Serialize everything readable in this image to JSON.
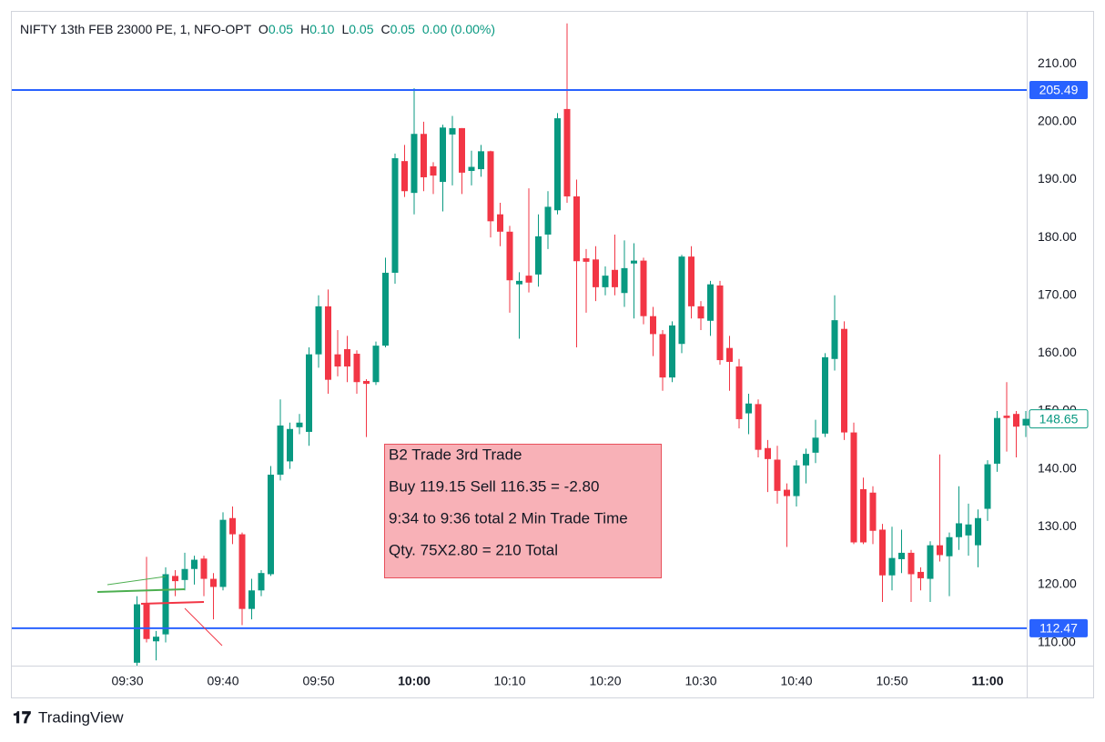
{
  "chart_data": {
    "type": "candlestick",
    "title": "NIFTY 13th FEB 23000 PE, 1, NFO-OPT",
    "ohlc_legend": [
      {
        "key": "O",
        "value": "0.05"
      },
      {
        "key": "H",
        "value": "0.10"
      },
      {
        "key": "L",
        "value": "0.05"
      },
      {
        "key": "C",
        "value": "0.05"
      }
    ],
    "change": "0.00 (0.00%)",
    "x": [
      "09:31",
      "09:32",
      "09:33",
      "09:34",
      "09:35",
      "09:36",
      "09:37",
      "09:38",
      "09:39",
      "09:40",
      "09:41",
      "09:42",
      "09:43",
      "09:44",
      "09:45",
      "09:46",
      "09:47",
      "09:48",
      "09:49",
      "09:50",
      "09:51",
      "09:52",
      "09:53",
      "09:54",
      "09:55",
      "09:56",
      "09:57",
      "09:58",
      "09:59",
      "10:00",
      "10:01",
      "10:02",
      "10:03",
      "10:04",
      "10:05",
      "10:06",
      "10:07",
      "10:08",
      "10:09",
      "10:10",
      "10:11",
      "10:12",
      "10:13",
      "10:14",
      "10:15",
      "10:16",
      "10:17",
      "10:18",
      "10:19",
      "10:20",
      "10:21",
      "10:22",
      "10:23",
      "10:24",
      "10:25",
      "10:26",
      "10:27",
      "10:28",
      "10:29",
      "10:30",
      "10:31",
      "10:32",
      "10:33",
      "10:34",
      "10:35",
      "10:36",
      "10:37",
      "10:38",
      "10:39",
      "10:40",
      "10:41",
      "10:42",
      "10:43",
      "10:44",
      "10:45",
      "10:46",
      "10:47",
      "10:48",
      "10:49",
      "10:50",
      "10:51",
      "10:52",
      "10:53",
      "10:54",
      "10:55",
      "10:56",
      "10:57",
      "10:58",
      "10:59",
      "11:00",
      "11:01",
      "11:02",
      "11:03",
      "11:04"
    ],
    "open": [
      106.5,
      116.6,
      110.2,
      111.4,
      121.5,
      120.8,
      122.7,
      124.5,
      121,
      119.6,
      131.5,
      128.7,
      115.8,
      119,
      121.8,
      139,
      141.3,
      147.2,
      146.4,
      159.8,
      168.1,
      159.8,
      160.7,
      159.9,
      155.2,
      155,
      161.3,
      173.9,
      193.2,
      187.7,
      197.9,
      192.3,
      189.6,
      197.8,
      198.9,
      191.5,
      191.8,
      194.9,
      184,
      181,
      171.9,
      173.4,
      173.6,
      180.5,
      184.7,
      202.2,
      187.1,
      176.4,
      176.2,
      171.4,
      174.4,
      170.4,
      175.5,
      176,
      166.4,
      163.3,
      155.8,
      161.6,
      176.7,
      168.1,
      165.6,
      171.7,
      160.9,
      157.7,
      149.6,
      151.2,
      143.6,
      141.6,
      136.4,
      135.3,
      140.6,
      142.8,
      146.1,
      159,
      164.2,
      146.3,
      136.5,
      135.9,
      129.5,
      121.6,
      124.4,
      125.5,
      122.2,
      121,
      126.8,
      124.9,
      128.2,
      128.5,
      126.8,
      133.1,
      140.9,
      149.2,
      149.5,
      147.5
    ],
    "high": [
      118,
      124.8,
      112,
      123,
      122.5,
      125.5,
      125,
      125,
      122,
      132.5,
      133.5,
      129,
      121,
      122.5,
      140.5,
      152,
      148,
      149.5,
      161,
      170,
      171,
      164,
      163,
      160.5,
      155.5,
      162,
      176.5,
      194.5,
      196,
      205.8,
      200,
      193,
      199.5,
      201,
      198.9,
      195,
      196,
      195,
      186,
      182,
      174,
      188.5,
      184,
      188,
      201.5,
      217,
      190,
      178,
      178.5,
      175,
      180.5,
      179.5,
      179,
      176.5,
      168,
      164,
      165.5,
      177,
      178.5,
      169,
      172.5,
      172.5,
      163,
      159,
      153,
      152,
      145,
      144,
      137.5,
      141.5,
      143.5,
      148.5,
      160,
      170,
      165.5,
      148,
      138.5,
      137,
      130.5,
      130,
      129.5,
      126,
      123,
      127.5,
      142.5,
      129,
      137,
      134,
      133,
      141.5,
      150,
      155,
      150,
      150
    ],
    "low": [
      106,
      110,
      106.9,
      110,
      118,
      119,
      120,
      118,
      114,
      119,
      127,
      113,
      114,
      118,
      121.5,
      138,
      140,
      146,
      144,
      157.5,
      153,
      156,
      155,
      153,
      145.5,
      154.5,
      161,
      172,
      187,
      184,
      188,
      187.5,
      184.5,
      189,
      187.5,
      189,
      190.5,
      180,
      178.5,
      167,
      162.5,
      170.5,
      171.5,
      178,
      184,
      186,
      161,
      167,
      169,
      170,
      170,
      168,
      166,
      165,
      159.5,
      153.5,
      155,
      160,
      166,
      164,
      163,
      158,
      153.5,
      147,
      146,
      142,
      136,
      134,
      126.5,
      133.5,
      137.5,
      141,
      145.5,
      157,
      145,
      127,
      127,
      127,
      117,
      119,
      122,
      117,
      119,
      117,
      124,
      118,
      126,
      125,
      123,
      131,
      139.5,
      143,
      142,
      145.5
    ],
    "close": [
      116.6,
      110.6,
      111,
      121.8,
      120.6,
      122.7,
      124.3,
      121,
      119.6,
      131.2,
      128.7,
      115.8,
      119,
      122,
      139,
      147.5,
      146.9,
      148,
      159.8,
      168.1,
      155.4,
      157.7,
      157.7,
      155,
      154.7,
      161.3,
      173.9,
      193.7,
      188,
      197.9,
      190.4,
      190.7,
      199,
      198.9,
      191.2,
      192.2,
      194.9,
      182.8,
      181,
      172.6,
      172.5,
      172.2,
      180.2,
      185.3,
      200.6,
      187.1,
      175.9,
      175.8,
      171.4,
      173.4,
      171.4,
      174.7,
      176,
      166.4,
      163.3,
      155.8,
      164.8,
      176.7,
      168.1,
      166,
      171.9,
      158.8,
      158.5,
      148.6,
      151.3,
      143.3,
      141.7,
      136.2,
      135.3,
      140.6,
      142.6,
      145.4,
      159.3,
      165.7,
      146.3,
      127.3,
      127.3,
      129.3,
      121.6,
      124.6,
      125.5,
      121.8,
      121.1,
      126.8,
      125.1,
      128.2,
      130.6,
      130.4,
      131.5,
      140.8,
      148.8,
      148.8,
      147.3,
      148.65
    ],
    "up_color": "#089981",
    "down_color": "#f23645",
    "ylim": [
      106,
      219
    ],
    "yticks": [
      {
        "value": 110,
        "label": "110.00"
      },
      {
        "value": 120,
        "label": "120.00"
      },
      {
        "value": 130,
        "label": "130.00"
      },
      {
        "value": 140,
        "label": "140.00"
      },
      {
        "value": 150,
        "label": "150.00"
      },
      {
        "value": 160,
        "label": "160.00"
      },
      {
        "value": 170,
        "label": "170.00"
      },
      {
        "value": 180,
        "label": "180.00"
      },
      {
        "value": 190,
        "label": "190.00"
      },
      {
        "value": 200,
        "label": "200.00"
      },
      {
        "value": 210,
        "label": "210.00"
      }
    ],
    "xticks": [
      "09:30",
      "09:40",
      "09:50",
      "10:00",
      "10:10",
      "10:20",
      "10:30",
      "10:40",
      "10:50",
      "11:00"
    ],
    "horizontal_lines": [
      {
        "value": 205.49,
        "label": "205.49",
        "color": "#2962ff"
      },
      {
        "value": 112.47,
        "label": "112.47",
        "color": "#2962ff"
      }
    ],
    "last_price": {
      "value": 148.65,
      "label": "148.65",
      "color": "#089981"
    },
    "annotation": [
      "B2 Trade 3rd Trade",
      "Buy 119.15 Sell 116.35 = -2.80",
      "9:34 to 9:36 total  2 Min Trade Time",
      "Qty. 75X2.80 = 210 Total"
    ],
    "branding": "TradingView"
  }
}
